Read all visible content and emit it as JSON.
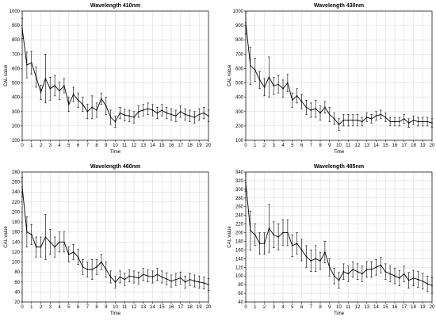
{
  "chart_data": [
    {
      "type": "line",
      "title": "Wavelength 410nm",
      "xlabel": "Time",
      "ylabel": "CAL value",
      "xlim": [
        0,
        20
      ],
      "ylim": [
        100,
        1000
      ],
      "xticks": [
        "0",
        "1",
        "2",
        "3",
        "4",
        "5",
        "6",
        "7",
        "8",
        "9",
        "10",
        "11",
        "12",
        "13",
        "14",
        "15",
        "16",
        "17",
        "18",
        "19",
        "20"
      ],
      "yticks": [
        "100",
        "200",
        "300",
        "400",
        "500",
        "600",
        "700",
        "800",
        "900",
        "1000"
      ],
      "yticks_values": [
        100,
        200,
        300,
        400,
        500,
        600,
        700,
        800,
        900,
        1000
      ],
      "grid": true,
      "x": [
        0,
        0.5,
        1,
        1.5,
        2,
        2.5,
        3,
        3.5,
        4,
        4.5,
        5,
        5.5,
        6,
        6.5,
        7,
        7.5,
        8,
        8.5,
        9,
        9.5,
        10,
        10.5,
        11,
        11.5,
        12,
        12.5,
        13,
        13.5,
        14,
        14.5,
        15,
        15.5,
        16,
        16.5,
        17,
        17.5,
        18,
        18.5,
        19,
        19.5,
        20
      ],
      "values": [
        880,
        625,
        640,
        540,
        435,
        530,
        460,
        480,
        445,
        480,
        350,
        420,
        380,
        350,
        300,
        330,
        310,
        390,
        340,
        260,
        230,
        290,
        275,
        270,
        260,
        300,
        310,
        320,
        310,
        290,
        310,
        290,
        280,
        270,
        300,
        280,
        270,
        260,
        280,
        290,
        270
      ],
      "errors": [
        70,
        90,
        80,
        70,
        50,
        170,
        80,
        70,
        60,
        50,
        50,
        50,
        50,
        50,
        50,
        80,
        50,
        40,
        60,
        50,
        40,
        40,
        40,
        40,
        40,
        40,
        40,
        40,
        40,
        40,
        40,
        40,
        40,
        40,
        40,
        40,
        40,
        40,
        40,
        40,
        40
      ]
    },
    {
      "type": "line",
      "title": "Wavelength 430nm",
      "xlabel": "Time",
      "ylabel": "CAL value",
      "xlim": [
        0,
        20
      ],
      "ylim": [
        100,
        1000
      ],
      "xticks": [
        "0",
        "1",
        "2",
        "3",
        "4",
        "5",
        "6",
        "7",
        "8",
        "9",
        "10",
        "11",
        "12",
        "13",
        "14",
        "15",
        "16",
        "17",
        "18",
        "19",
        "20"
      ],
      "yticks": [
        "100",
        "200",
        "300",
        "400",
        "500",
        "600",
        "700",
        "800",
        "900",
        "1000"
      ],
      "yticks_values": [
        100,
        200,
        300,
        400,
        500,
        600,
        700,
        800,
        900,
        1000
      ],
      "grid": true,
      "x": [
        0,
        0.5,
        1,
        1.5,
        2,
        2.5,
        3,
        3.5,
        4,
        4.5,
        5,
        5.5,
        6,
        6.5,
        7,
        7.5,
        8,
        8.5,
        9,
        9.5,
        10,
        10.5,
        11,
        11.5,
        12,
        12.5,
        13,
        13.5,
        14,
        14.5,
        15,
        15.5,
        16,
        16.5,
        17,
        17.5,
        18,
        18.5,
        19,
        19.5,
        20
      ],
      "values": [
        920,
        620,
        590,
        520,
        470,
        540,
        480,
        490,
        460,
        500,
        380,
        410,
        370,
        330,
        310,
        320,
        290,
        330,
        280,
        250,
        210,
        240,
        240,
        240,
        240,
        230,
        260,
        250,
        270,
        280,
        260,
        230,
        230,
        230,
        250,
        220,
        240,
        230,
        230,
        230,
        220
      ],
      "errors": [
        80,
        130,
        80,
        60,
        60,
        140,
        60,
        60,
        60,
        60,
        50,
        50,
        50,
        50,
        50,
        60,
        50,
        40,
        50,
        40,
        40,
        40,
        40,
        40,
        40,
        30,
        30,
        30,
        30,
        30,
        30,
        30,
        30,
        30,
        30,
        30,
        30,
        30,
        30,
        30,
        30
      ]
    },
    {
      "type": "line",
      "title": "Wavelength 460nm",
      "xlabel": "Time",
      "ylabel": "CAL value",
      "xlim": [
        0,
        20
      ],
      "ylim": [
        20,
        280
      ],
      "xticks": [
        "0",
        "1",
        "2",
        "3",
        "4",
        "5",
        "6",
        "7",
        "8",
        "9",
        "10",
        "11",
        "12",
        "13",
        "14",
        "15",
        "16",
        "17",
        "18",
        "19",
        "20"
      ],
      "yticks": [
        "20",
        "40",
        "60",
        "80",
        "100",
        "120",
        "140",
        "160",
        "180",
        "200",
        "220",
        "240",
        "260",
        "280"
      ],
      "yticks_values": [
        20,
        40,
        60,
        80,
        100,
        120,
        140,
        160,
        180,
        200,
        220,
        240,
        260,
        280
      ],
      "grid": true,
      "x": [
        0,
        0.5,
        1,
        1.5,
        2,
        2.5,
        3,
        3.5,
        4,
        4.5,
        5,
        5.5,
        6,
        6.5,
        7,
        7.5,
        8,
        8.5,
        9,
        9.5,
        10,
        10.5,
        11,
        11.5,
        12,
        12.5,
        13,
        13.5,
        14,
        14.5,
        15,
        15.5,
        16,
        16.5,
        17,
        17.5,
        18,
        18.5,
        19,
        19.5,
        20
      ],
      "values": [
        250,
        160,
        155,
        130,
        130,
        150,
        140,
        130,
        140,
        140,
        115,
        120,
        110,
        90,
        85,
        85,
        90,
        100,
        85,
        70,
        60,
        70,
        65,
        72,
        70,
        68,
        75,
        72,
        70,
        75,
        70,
        66,
        62,
        65,
        68,
        60,
        65,
        62,
        60,
        58,
        55
      ],
      "errors": [
        20,
        30,
        20,
        20,
        20,
        45,
        25,
        20,
        20,
        20,
        15,
        15,
        15,
        15,
        15,
        20,
        15,
        15,
        15,
        12,
        12,
        12,
        12,
        12,
        12,
        12,
        12,
        12,
        12,
        12,
        12,
        12,
        12,
        12,
        12,
        12,
        12,
        12,
        12,
        12,
        12
      ]
    },
    {
      "type": "line",
      "title": "Wavelength 485nm",
      "xlabel": "Time",
      "ylabel": "CAL value",
      "xlim": [
        0,
        20
      ],
      "ylim": [
        40,
        340
      ],
      "xticks": [
        "0",
        "1",
        "2",
        "3",
        "4",
        "5",
        "6",
        "7",
        "8",
        "9",
        "10",
        "11",
        "12",
        "13",
        "14",
        "15",
        "16",
        "17",
        "18",
        "19",
        "20"
      ],
      "yticks": [
        "40",
        "60",
        "80",
        "100",
        "120",
        "140",
        "160",
        "180",
        "200",
        "220",
        "240",
        "260",
        "280",
        "300",
        "320",
        "340"
      ],
      "yticks_values": [
        40,
        60,
        80,
        100,
        120,
        140,
        160,
        180,
        200,
        220,
        240,
        260,
        280,
        300,
        320,
        340
      ],
      "grid": true,
      "x": [
        0,
        0.5,
        1,
        1.5,
        2,
        2.5,
        3,
        3.5,
        4,
        4.5,
        5,
        5.5,
        6,
        6.5,
        7,
        7.5,
        8,
        8.5,
        9,
        9.5,
        10,
        10.5,
        11,
        11.5,
        12,
        12.5,
        13,
        13.5,
        14,
        14.5,
        15,
        15.5,
        16,
        16.5,
        17,
        17.5,
        18,
        18.5,
        19,
        19.5,
        20
      ],
      "values": [
        315,
        205,
        195,
        175,
        175,
        210,
        195,
        190,
        200,
        200,
        170,
        175,
        160,
        145,
        135,
        140,
        135,
        155,
        120,
        100,
        90,
        110,
        105,
        115,
        110,
        105,
        115,
        115,
        120,
        125,
        110,
        105,
        100,
        95,
        105,
        90,
        95,
        92,
        88,
        82,
        78
      ],
      "errors": [
        20,
        45,
        25,
        25,
        25,
        55,
        30,
        30,
        30,
        30,
        25,
        25,
        25,
        25,
        25,
        30,
        20,
        25,
        20,
        18,
        18,
        18,
        18,
        18,
        18,
        18,
        18,
        18,
        18,
        18,
        18,
        18,
        18,
        18,
        18,
        18,
        18,
        18,
        18,
        18,
        18
      ]
    }
  ]
}
